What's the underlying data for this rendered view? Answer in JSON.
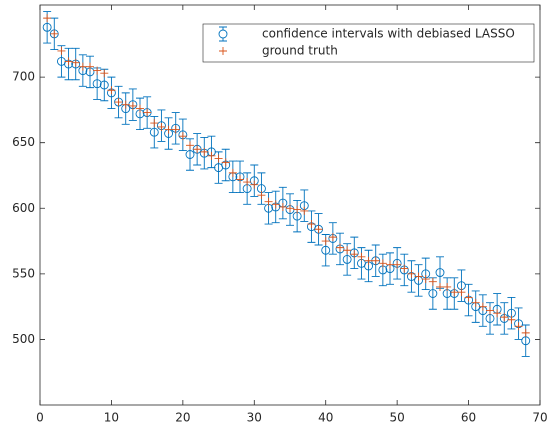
{
  "chart_data": {
    "type": "errorbar",
    "x": [
      1,
      2,
      3,
      4,
      5,
      6,
      7,
      8,
      9,
      10,
      11,
      12,
      13,
      14,
      15,
      16,
      17,
      18,
      19,
      20,
      21,
      22,
      23,
      24,
      25,
      26,
      27,
      28,
      29,
      30,
      31,
      32,
      33,
      34,
      35,
      36,
      37,
      38,
      39,
      40,
      41,
      42,
      43,
      44,
      45,
      46,
      47,
      48,
      49,
      50,
      51,
      52,
      53,
      54,
      55,
      56,
      57,
      58,
      59,
      60,
      61,
      62,
      63,
      64,
      65,
      66,
      67,
      68
    ],
    "series": [
      {
        "name": "confidence intervals with debiased LASSO",
        "color": "#0072bd",
        "values": [
          738,
          733,
          712,
          710,
          710,
          705,
          704,
          695,
          694,
          688,
          681,
          676,
          679,
          672,
          673,
          658,
          663,
          657,
          661,
          656,
          641,
          645,
          642,
          643,
          631,
          633,
          624,
          624,
          615,
          621,
          615,
          600,
          601,
          604,
          599,
          594,
          602,
          586,
          584,
          568,
          577,
          569,
          561,
          566,
          558,
          556,
          560,
          553,
          554,
          558,
          553,
          548,
          545,
          550,
          535,
          551,
          535,
          535,
          541,
          530,
          525,
          522,
          516,
          523,
          516,
          520,
          512,
          499
        ],
        "errors": [
          12,
          12,
          12,
          12,
          12,
          12,
          12,
          12,
          12,
          12,
          12,
          12,
          12,
          12,
          12,
          12,
          12,
          12,
          12,
          12,
          12,
          12,
          12,
          12,
          12,
          12,
          12,
          12,
          12,
          12,
          12,
          12,
          12,
          12,
          12,
          12,
          12,
          12,
          12,
          12,
          12,
          12,
          12,
          12,
          12,
          12,
          12,
          12,
          12,
          12,
          12,
          12,
          12,
          12,
          12,
          12,
          12,
          12,
          12,
          12,
          12,
          12,
          12,
          12,
          12,
          12,
          12,
          12
        ]
      },
      {
        "name": "ground truth",
        "color": "#d95319",
        "values": [
          745,
          733,
          720,
          712,
          711,
          708,
          708,
          705,
          703,
          690,
          681,
          679,
          678,
          676,
          673,
          665,
          662,
          660,
          660,
          655,
          648,
          645,
          643,
          640,
          638,
          635,
          627,
          622,
          620,
          618,
          610,
          605,
          603,
          601,
          600,
          599,
          598,
          588,
          584,
          575,
          578,
          570,
          568,
          565,
          563,
          560,
          560,
          558,
          557,
          557,
          554,
          550,
          548,
          546,
          544,
          540,
          540,
          536,
          536,
          532,
          528,
          525,
          522,
          520,
          517,
          515,
          510,
          505
        ]
      }
    ],
    "xlim": [
      0,
      70
    ],
    "xticks": [
      0,
      10,
      20,
      30,
      40,
      50,
      60,
      70
    ],
    "ylim": [
      450,
      755
    ],
    "yticks": [
      500,
      550,
      600,
      650,
      700
    ],
    "legend": "top-right"
  }
}
